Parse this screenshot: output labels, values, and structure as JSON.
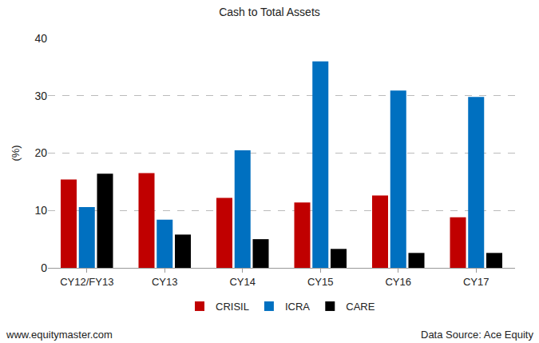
{
  "chart_data": {
    "type": "bar",
    "title": "Cash to Total Assets",
    "y_label": "(%)",
    "categories": [
      "CY12/FY13",
      "CY13",
      "CY14",
      "CY15",
      "CY16",
      "CY17"
    ],
    "series": [
      {
        "name": "CRISIL",
        "color": "#c00000",
        "values": [
          15.4,
          16.5,
          12.2,
          11.4,
          12.6,
          8.8
        ]
      },
      {
        "name": "ICRA",
        "color": "#0070c0",
        "values": [
          10.6,
          8.4,
          20.5,
          36.0,
          30.9,
          29.8
        ]
      },
      {
        "name": "CARE",
        "color": "#000000",
        "values": [
          16.4,
          5.8,
          5.0,
          3.3,
          2.6,
          2.6
        ]
      }
    ],
    "ylim": [
      0,
      40
    ],
    "yticks": [
      0,
      10,
      20,
      30,
      40
    ],
    "grid": true,
    "legend": "bottom",
    "annotations": [
      "www.equitymaster.com",
      "Data Source: Ace Equity"
    ]
  }
}
